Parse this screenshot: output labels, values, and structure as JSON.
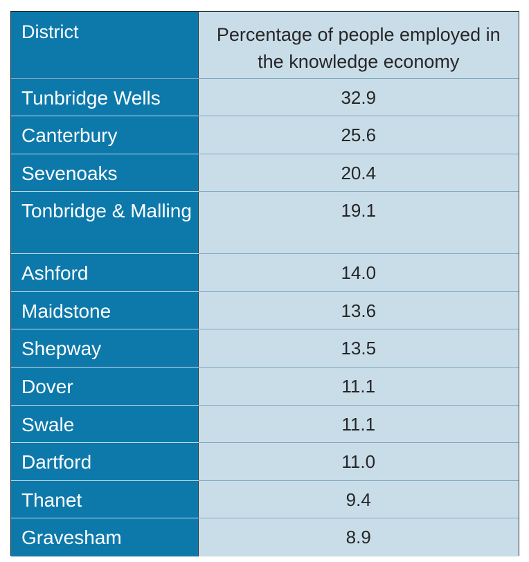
{
  "chart_data": {
    "type": "table",
    "columns": [
      "District",
      "Percentage of people employed in the knowledge economy"
    ],
    "rows": [
      {
        "district": "Tunbridge Wells",
        "value": "32.9"
      },
      {
        "district": "Canterbury",
        "value": "25.6"
      },
      {
        "district": "Sevenoaks",
        "value": "20.4"
      },
      {
        "district": "Tonbridge & Malling",
        "value": "19.1"
      },
      {
        "district": "Ashford",
        "value": "14.0"
      },
      {
        "district": "Maidstone",
        "value": "13.6"
      },
      {
        "district": "Shepway",
        "value": "13.5"
      },
      {
        "district": "Dover",
        "value": "11.1"
      },
      {
        "district": "Swale",
        "value": "11.1"
      },
      {
        "district": "Dartford",
        "value": "11.0"
      },
      {
        "district": "Thanet",
        "value": "9.4"
      },
      {
        "district": "Gravesham",
        "value": "8.9"
      }
    ]
  },
  "colors": {
    "district_column_bg": "#0d79ab",
    "value_column_bg": "#c9dde9",
    "district_text": "#ffffff",
    "value_text": "#262626"
  }
}
